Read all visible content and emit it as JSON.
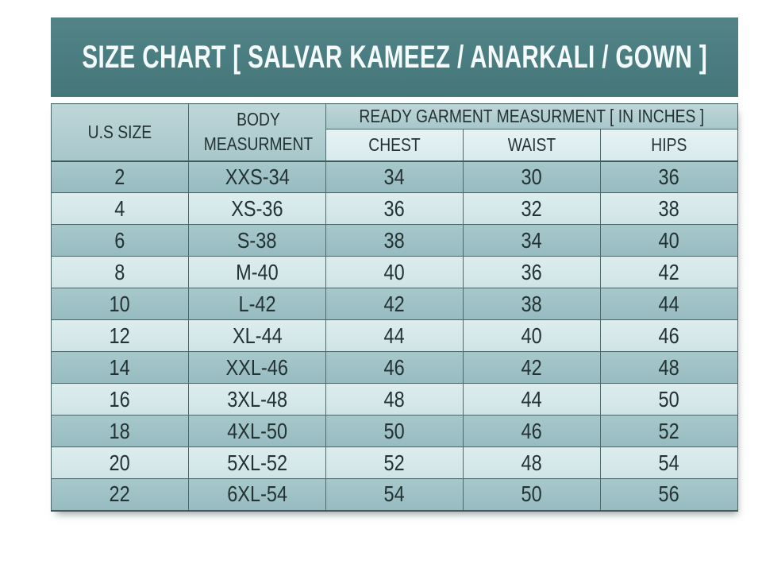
{
  "title": "SIZE CHART [ SALVAR KAMEEZ / ANARKALI / GOWN ]",
  "table": {
    "header": {
      "us_size": "U.S SIZE",
      "body_measurement": "BODY MEASURMENT",
      "ready_garment": "READY GARMENT MEASURMENT [ IN INCHES ]",
      "sub_columns": [
        "CHEST",
        "WAIST",
        "HIPS"
      ]
    },
    "rows": [
      {
        "us_size": "2",
        "body": "XXS-34",
        "chest": "34",
        "waist": "30",
        "hips": "36"
      },
      {
        "us_size": "4",
        "body": "XS-36",
        "chest": "36",
        "waist": "32",
        "hips": "38"
      },
      {
        "us_size": "6",
        "body": "S-38",
        "chest": "38",
        "waist": "34",
        "hips": "40"
      },
      {
        "us_size": "8",
        "body": "M-40",
        "chest": "40",
        "waist": "36",
        "hips": "42"
      },
      {
        "us_size": "10",
        "body": "L-42",
        "chest": "42",
        "waist": "38",
        "hips": "44"
      },
      {
        "us_size": "12",
        "body": "XL-44",
        "chest": "44",
        "waist": "40",
        "hips": "46"
      },
      {
        "us_size": "14",
        "body": "XXL-46",
        "chest": "46",
        "waist": "42",
        "hips": "48"
      },
      {
        "us_size": "16",
        "body": "3XL-48",
        "chest": "48",
        "waist": "44",
        "hips": "50"
      },
      {
        "us_size": "18",
        "body": "4XL-50",
        "chest": "50",
        "waist": "46",
        "hips": "52"
      },
      {
        "us_size": "20",
        "body": "5XL-52",
        "chest": "52",
        "waist": "48",
        "hips": "54"
      },
      {
        "us_size": "22",
        "body": "6XL-54",
        "chest": "54",
        "waist": "50",
        "hips": "56"
      }
    ]
  },
  "chart_data": {
    "type": "table",
    "title": "SIZE CHART [ SALVAR KAMEEZ / ANARKALI / GOWN ]",
    "group_header": "READY GARMENT MEASURMENT [ IN INCHES ]",
    "columns": [
      "U.S SIZE",
      "BODY MEASURMENT",
      "CHEST",
      "WAIST",
      "HIPS"
    ],
    "rows": [
      [
        "2",
        "XXS-34",
        34,
        30,
        36
      ],
      [
        "4",
        "XS-36",
        36,
        32,
        38
      ],
      [
        "6",
        "S-38",
        38,
        34,
        40
      ],
      [
        "8",
        "M-40",
        40,
        36,
        42
      ],
      [
        "10",
        "L-42",
        42,
        38,
        44
      ],
      [
        "12",
        "XL-44",
        44,
        40,
        46
      ],
      [
        "14",
        "XXL-46",
        46,
        42,
        48
      ],
      [
        "16",
        "3XL-48",
        48,
        44,
        50
      ],
      [
        "18",
        "4XL-50",
        50,
        46,
        52
      ],
      [
        "20",
        "5XL-52",
        52,
        48,
        54
      ],
      [
        "22",
        "6XL-54",
        54,
        50,
        56
      ]
    ]
  },
  "colors": {
    "banner": "#4b7e82",
    "banner_text": "#f5fbfb",
    "header_top": "#bed6d8",
    "header_bottom": "#a7c7cb",
    "subheader_top": "#e7f2f3",
    "subheader_bottom": "#d8eaec",
    "row_dark_top": "#a7c8cb",
    "row_dark_bottom": "#96bbc0",
    "row_light_top": "#ddedee",
    "row_light_bottom": "#cfe3e6",
    "grid": "#4d696c",
    "grid_dark": "#3f5a5d",
    "text": "#243233"
  }
}
